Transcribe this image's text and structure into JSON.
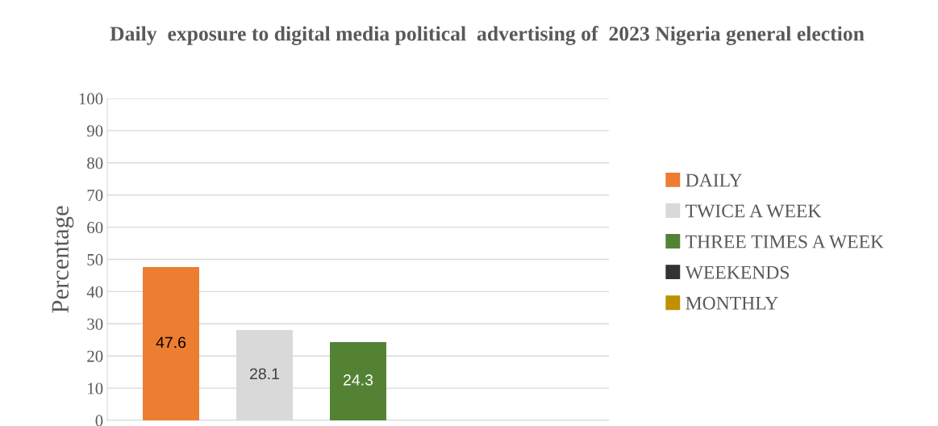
{
  "chart_data": {
    "type": "bar",
    "title": "Daily  exposure to digital media political  advertising of  2023 Nigeria general election",
    "ylabel": "Percentage",
    "categories": [
      null
    ],
    "series": [
      {
        "name": "DAILY",
        "color": "#ed7d31",
        "values": [
          47.6
        ]
      },
      {
        "name": "TWICE A WEEK",
        "color": "#d9d9d9",
        "values": [
          28.1
        ]
      },
      {
        "name": "THREE TIMES A WEEK",
        "color": "#548235",
        "values": [
          24.3
        ]
      },
      {
        "name": "WEEKENDS",
        "color": "#333333",
        "values": [
          null
        ]
      },
      {
        "name": "MONTHLY",
        "color": "#bf9000",
        "values": [
          null
        ]
      }
    ],
    "ylim": [
      0,
      100
    ],
    "yticks": [
      0,
      10,
      20,
      30,
      40,
      50,
      60,
      70,
      80,
      90,
      100
    ],
    "grid": "y",
    "legend": "right",
    "data_labels": true
  }
}
